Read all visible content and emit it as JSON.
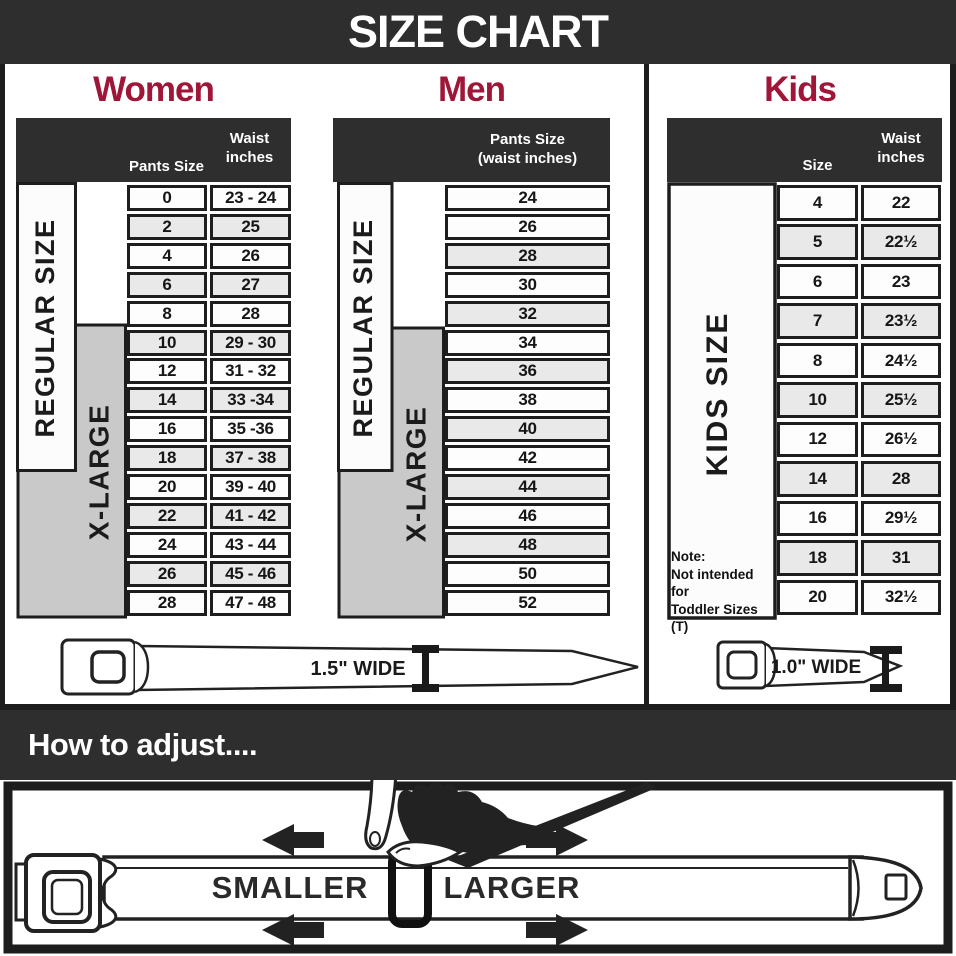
{
  "title": "SIZE CHART",
  "colors": {
    "dark_bar": "#2d2e2d",
    "accent_maroon": "#9e1638",
    "row_shaded": "#e9e9e9",
    "label_gray": "#c9c9c9",
    "line_black": "#1d1d1d"
  },
  "sections": {
    "women": {
      "heading": "Women",
      "col1": "Pants Size",
      "col2": "Waist inches",
      "regular_label": "REGULAR SIZE",
      "xlarge_label": "X-LARGE",
      "rows": [
        {
          "size": "0",
          "waist": "23 - 24"
        },
        {
          "size": "2",
          "waist": "25"
        },
        {
          "size": "4",
          "waist": "26"
        },
        {
          "size": "6",
          "waist": "27"
        },
        {
          "size": "8",
          "waist": "28"
        },
        {
          "size": "10",
          "waist": "29 - 30"
        },
        {
          "size": "12",
          "waist": "31 - 32"
        },
        {
          "size": "14",
          "waist": "33 -34"
        },
        {
          "size": "16",
          "waist": "35 -36"
        },
        {
          "size": "18",
          "waist": "37 - 38"
        },
        {
          "size": "20",
          "waist": "39 - 40"
        },
        {
          "size": "22",
          "waist": "41 - 42"
        },
        {
          "size": "24",
          "waist": "43 - 44"
        },
        {
          "size": "26",
          "waist": "45 - 46"
        },
        {
          "size": "28",
          "waist": "47 - 48"
        }
      ]
    },
    "men": {
      "heading": "Men",
      "col1": "Pants Size",
      "col1b": "(waist inches)",
      "regular_label": "REGULAR SIZE",
      "xlarge_label": "X-LARGE",
      "rows": [
        "24",
        "26",
        "28",
        "30",
        "32",
        "34",
        "36",
        "38",
        "40",
        "42",
        "44",
        "46",
        "48",
        "50",
        "52"
      ]
    },
    "kids": {
      "heading": "Kids",
      "col1": "Size",
      "col2": "Waist inches",
      "label": "KIDS SIZE",
      "note": [
        "Note:",
        "Not intended for",
        "Toddler Sizes (T)"
      ],
      "rows": [
        {
          "size": "4",
          "waist": "22"
        },
        {
          "size": "5",
          "waist": "22½"
        },
        {
          "size": "6",
          "waist": "23"
        },
        {
          "size": "7",
          "waist": "23½"
        },
        {
          "size": "8",
          "waist": "24½"
        },
        {
          "size": "10",
          "waist": "25½"
        },
        {
          "size": "12",
          "waist": "26½"
        },
        {
          "size": "14",
          "waist": "28"
        },
        {
          "size": "16",
          "waist": "29½"
        },
        {
          "size": "18",
          "waist": "31"
        },
        {
          "size": "20",
          "waist": "32½"
        }
      ]
    }
  },
  "belts": {
    "adult_label": "1.5\" WIDE",
    "kids_label": "1.0\" WIDE"
  },
  "adjust": {
    "heading": "How to adjust....",
    "smaller": "SMALLER",
    "larger": "LARGER"
  },
  "chart_data": [
    {
      "type": "table",
      "title": "Women",
      "columns": [
        "Pants Size",
        "Waist inches"
      ],
      "rows": [
        [
          "0",
          "23 - 24"
        ],
        [
          "2",
          "25"
        ],
        [
          "4",
          "26"
        ],
        [
          "6",
          "27"
        ],
        [
          "8",
          "28"
        ],
        [
          "10",
          "29 - 30"
        ],
        [
          "12",
          "31 - 32"
        ],
        [
          "14",
          "33 -34"
        ],
        [
          "16",
          "35 -36"
        ],
        [
          "18",
          "37 - 38"
        ],
        [
          "20",
          "39 - 40"
        ],
        [
          "22",
          "41 - 42"
        ],
        [
          "24",
          "43 - 44"
        ],
        [
          "26",
          "45 - 46"
        ],
        [
          "28",
          "47 - 48"
        ]
      ],
      "groups": [
        {
          "label": "REGULAR SIZE",
          "rows": "0-18"
        },
        {
          "label": "X-LARGE",
          "rows": "10-28"
        }
      ],
      "belt_width": "1.5\" WIDE"
    },
    {
      "type": "table",
      "title": "Men",
      "columns": [
        "Pants Size (waist inches)"
      ],
      "rows": [
        [
          "24"
        ],
        [
          "26"
        ],
        [
          "28"
        ],
        [
          "30"
        ],
        [
          "32"
        ],
        [
          "34"
        ],
        [
          "36"
        ],
        [
          "38"
        ],
        [
          "40"
        ],
        [
          "42"
        ],
        [
          "44"
        ],
        [
          "46"
        ],
        [
          "48"
        ],
        [
          "50"
        ],
        [
          "52"
        ]
      ],
      "groups": [
        {
          "label": "REGULAR SIZE",
          "rows": "24-42"
        },
        {
          "label": "X-LARGE",
          "rows": "34-52"
        }
      ],
      "belt_width": "1.5\" WIDE"
    },
    {
      "type": "table",
      "title": "Kids",
      "columns": [
        "Size",
        "Waist inches"
      ],
      "rows": [
        [
          "4",
          "22"
        ],
        [
          "5",
          "22½"
        ],
        [
          "6",
          "23"
        ],
        [
          "7",
          "23½"
        ],
        [
          "8",
          "24½"
        ],
        [
          "10",
          "25½"
        ],
        [
          "12",
          "26½"
        ],
        [
          "14",
          "28"
        ],
        [
          "16",
          "29½"
        ],
        [
          "18",
          "31"
        ],
        [
          "20",
          "32½"
        ]
      ],
      "groups": [
        {
          "label": "KIDS SIZE",
          "rows": "4-20"
        }
      ],
      "note": "Not intended for Toddler Sizes (T)",
      "belt_width": "1.0\" WIDE"
    }
  ]
}
